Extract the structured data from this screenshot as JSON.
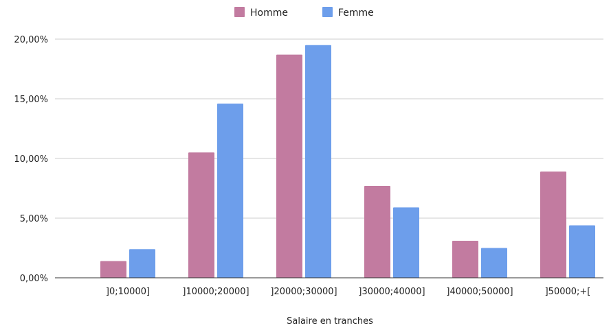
{
  "chart_data": {
    "type": "bar",
    "title": "",
    "xlabel": "Salaire en tranches",
    "ylabel": "",
    "categories": [
      "]0;10000]",
      "]10000;20000]",
      "]20000;30000]",
      "]30000;40000]",
      "]40000;50000]",
      "]50000;+["
    ],
    "series": [
      {
        "name": "Homme",
        "color": "#c27ba0",
        "values": [
          1.4,
          10.5,
          18.7,
          7.7,
          3.1,
          8.9
        ]
      },
      {
        "name": "Femme",
        "color": "#6d9eeb",
        "values": [
          2.4,
          14.6,
          19.5,
          5.9,
          2.5,
          4.4
        ]
      }
    ],
    "ylim": [
      0,
      20
    ],
    "y_ticks": [
      "0,00%",
      "5,00%",
      "10,00%",
      "15,00%",
      "20,00%"
    ],
    "y_tick_values": [
      0,
      5,
      10,
      15,
      20
    ],
    "grid": true,
    "legend_position": "top-center"
  }
}
